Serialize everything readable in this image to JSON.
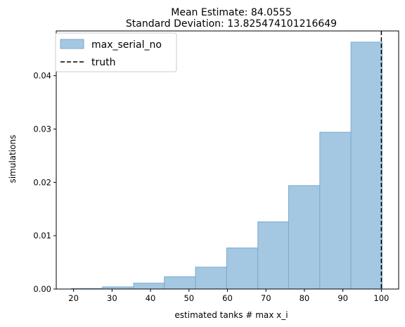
{
  "chart_data": {
    "type": "bar",
    "title": [
      "Mean Estimate: 84.0555",
      "Standard Deviation: 13.825474101216649"
    ],
    "xlabel": "estimated tanks # max x_i",
    "ylabel": "simulations",
    "xlim": [
      15.5,
      104.5
    ],
    "ylim": [
      0.0,
      0.0484
    ],
    "xticks": [
      20,
      30,
      40,
      50,
      60,
      70,
      80,
      90,
      100
    ],
    "yticks": [
      0.0,
      0.01,
      0.02,
      0.03,
      0.04
    ],
    "ytick_labels": [
      "0.00",
      "0.01",
      "0.02",
      "0.03",
      "0.04"
    ],
    "series": [
      {
        "name": "max_serial_no",
        "type": "histogram",
        "color": "#a4c8e1",
        "edge_color": "#7aa9cf",
        "bin_edges": [
          19.4,
          27.5,
          35.6,
          43.6,
          51.7,
          59.8,
          67.9,
          75.9,
          84.0,
          92.1,
          100.2
        ],
        "values": [
          0.0001,
          0.0004,
          0.0011,
          0.0023,
          0.0041,
          0.0077,
          0.0126,
          0.0194,
          0.0294,
          0.0463
        ]
      }
    ],
    "reference_lines": [
      {
        "name": "truth",
        "x": 100,
        "color": "#000000",
        "style": "dashed"
      }
    ],
    "legend_position": "top-left",
    "grid": false
  }
}
